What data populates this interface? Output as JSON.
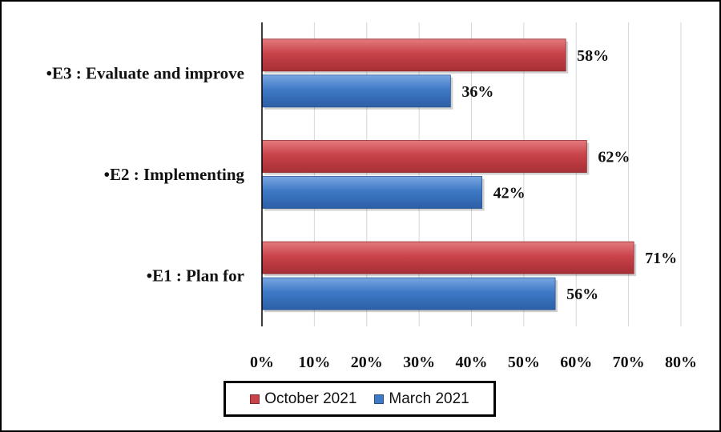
{
  "chart_data": {
    "type": "bar",
    "orientation": "horizontal",
    "categories": [
      "•E1 : Plan for",
      "•E2 : Implementing",
      "•E3 : Evaluate and improve"
    ],
    "series": [
      {
        "name": "October 2021",
        "color": "#c9434a",
        "values": [
          71,
          62,
          58
        ],
        "labels": [
          "71%",
          "62%",
          "58%"
        ]
      },
      {
        "name": "March 2021",
        "color": "#3f79c6",
        "values": [
          56,
          42,
          36
        ],
        "labels": [
          "56%",
          "42%",
          "36%"
        ]
      }
    ],
    "xlim": [
      0,
      80
    ],
    "xticks": [
      0,
      10,
      20,
      30,
      40,
      50,
      60,
      70,
      80
    ],
    "xtick_labels": [
      "0%",
      "10%",
      "20%",
      "30%",
      "40%",
      "50%",
      "60%",
      "70%",
      "80%"
    ],
    "grid": "vertical",
    "legend": "bottom"
  }
}
